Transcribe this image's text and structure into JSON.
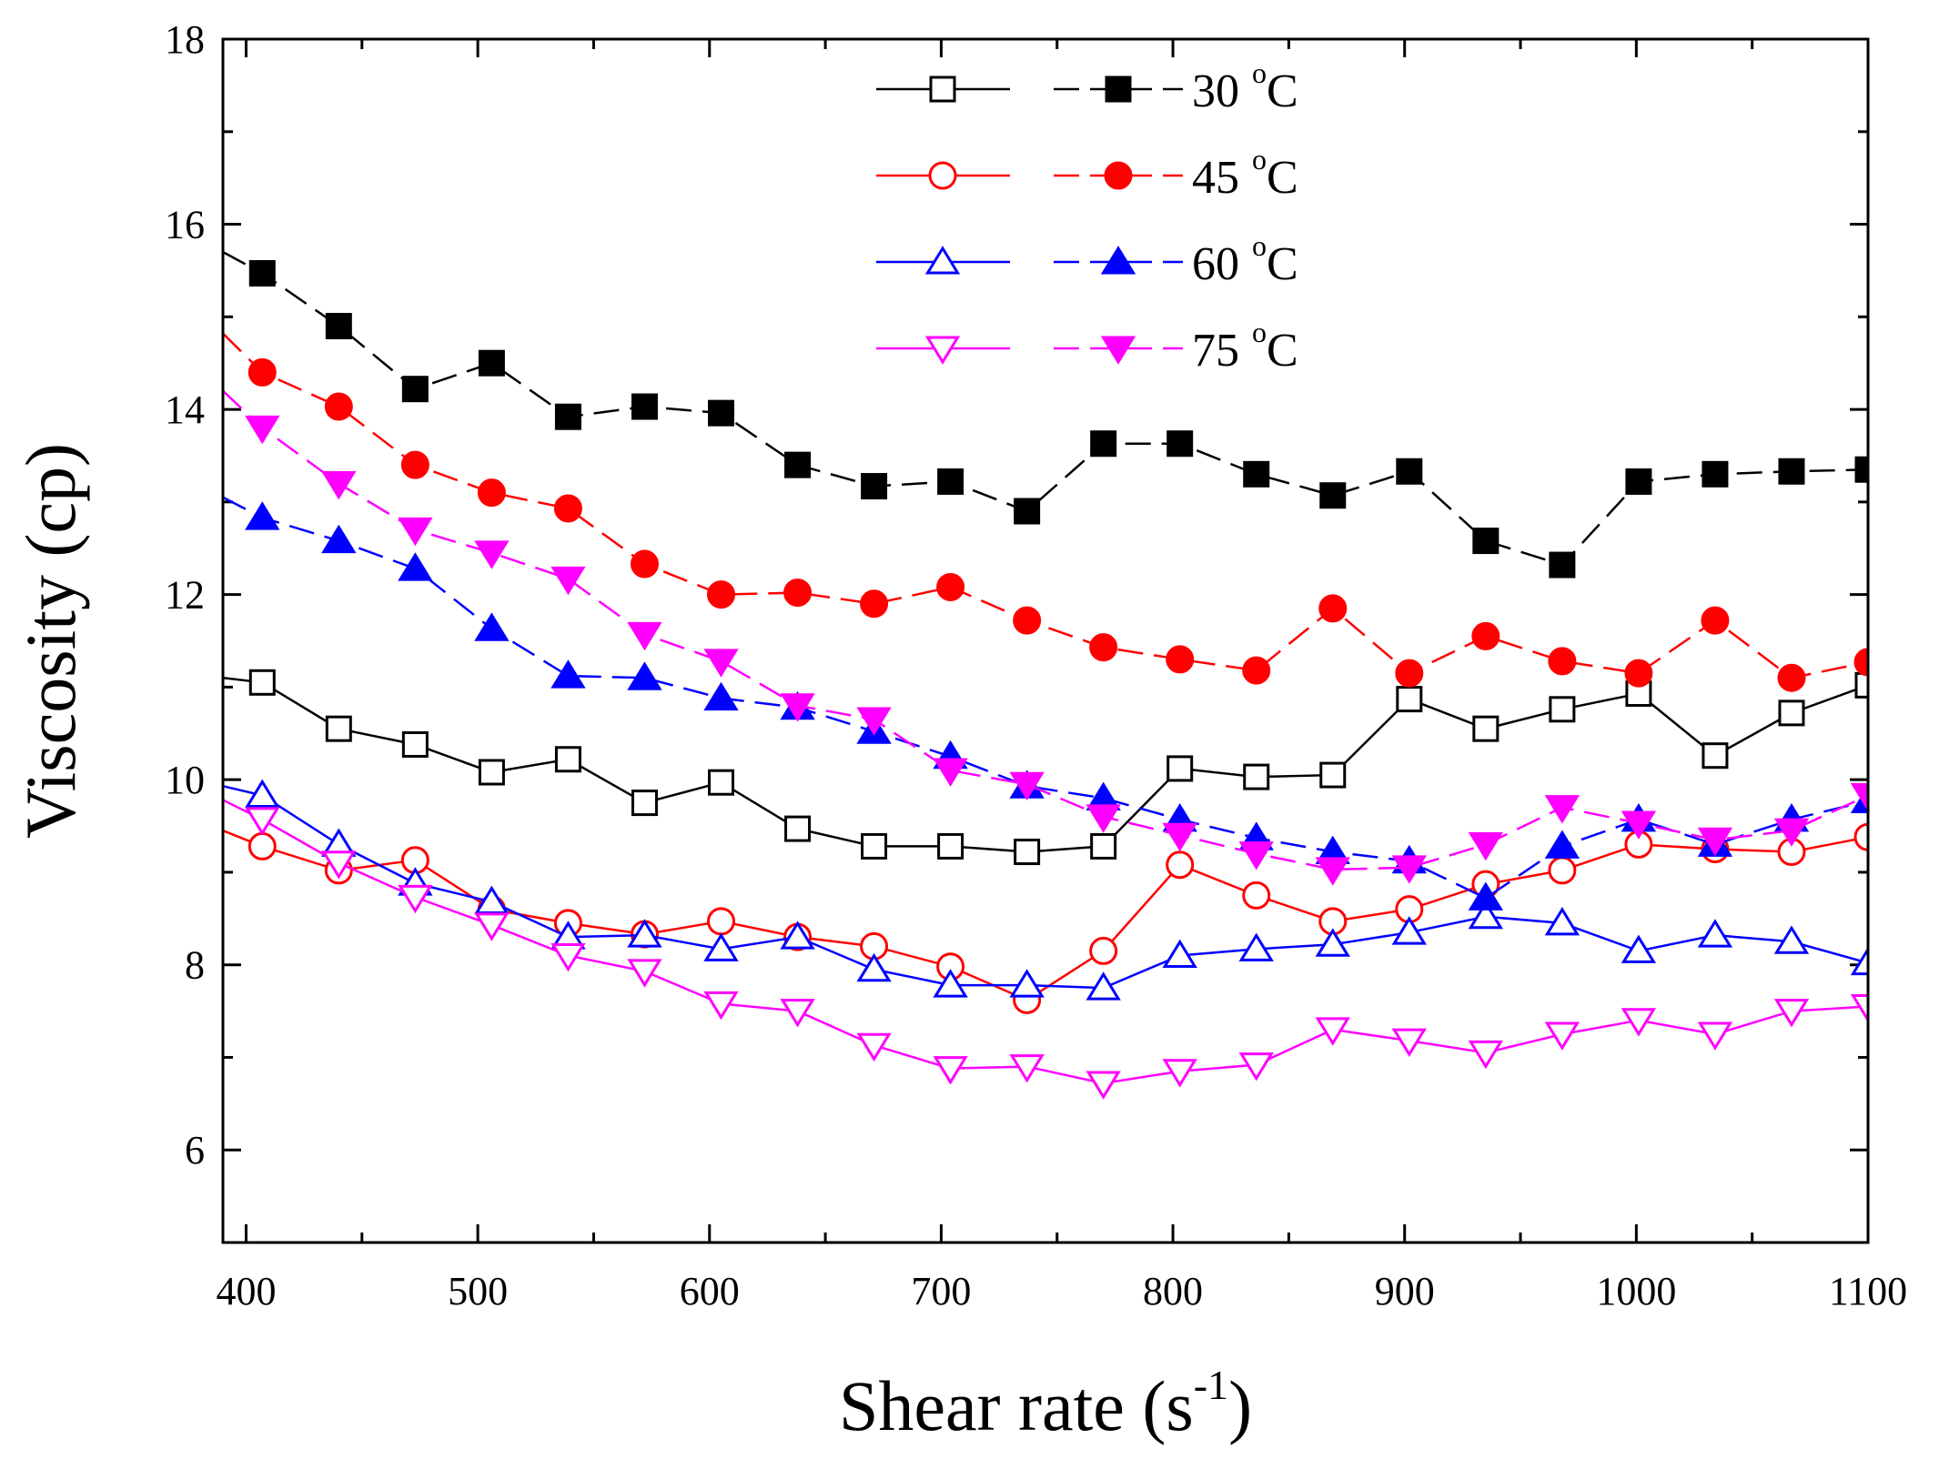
{
  "chart_data": {
    "type": "line",
    "title": "",
    "xlabel": "Shear rate (s",
    "xlabel_sup": "-1",
    "xlabel_close": ")",
    "ylabel": "Viscosity (cp)",
    "xlim": [
      390,
      1100
    ],
    "ylim": [
      5,
      18
    ],
    "xticks": [
      400,
      500,
      600,
      700,
      800,
      900,
      1000,
      1100
    ],
    "yticks": [
      6,
      8,
      10,
      12,
      14,
      16,
      18
    ],
    "legend_position": "top-center",
    "x": [
      390,
      407,
      440,
      473,
      506,
      539,
      572,
      605,
      638,
      671,
      704,
      737,
      770,
      803,
      836,
      869,
      902,
      935,
      968,
      1001,
      1034,
      1067,
      1100
    ],
    "series": [
      {
        "name": "30 °C (open)",
        "temp": "30",
        "color": "#000000",
        "marker": "square",
        "filled": false,
        "values": [
          11.1,
          11.05,
          10.55,
          10.38,
          10.08,
          10.22,
          9.75,
          9.97,
          9.47,
          9.28,
          9.28,
          9.22,
          9.28,
          10.12,
          10.03,
          10.05,
          10.87,
          10.55,
          10.76,
          10.93,
          10.26,
          10.72,
          11.02
        ]
      },
      {
        "name": "30 °C (filled)",
        "temp": "30",
        "color": "#000000",
        "marker": "square",
        "filled": true,
        "values": [
          15.7,
          15.47,
          14.9,
          14.22,
          14.5,
          13.92,
          14.03,
          13.96,
          13.4,
          13.17,
          13.22,
          12.9,
          13.63,
          13.63,
          13.3,
          13.07,
          13.33,
          12.58,
          12.32,
          13.22,
          13.3,
          13.33,
          13.35
        ]
      },
      {
        "name": "45 °C (open)",
        "temp": "45",
        "color": "#ff0000",
        "marker": "circle",
        "filled": false,
        "values": [
          9.45,
          9.28,
          9.02,
          9.13,
          8.6,
          8.45,
          8.33,
          8.47,
          8.3,
          8.2,
          7.98,
          7.62,
          8.15,
          9.08,
          8.75,
          8.47,
          8.6,
          8.87,
          9.02,
          9.3,
          9.25,
          9.22,
          9.38
        ]
      },
      {
        "name": "45 °C (filled)",
        "temp": "45",
        "color": "#ff0000",
        "marker": "circle",
        "filled": true,
        "values": [
          14.82,
          14.4,
          14.03,
          13.4,
          13.1,
          12.93,
          12.33,
          12.0,
          12.02,
          11.9,
          12.08,
          11.72,
          11.43,
          11.3,
          11.18,
          11.85,
          11.15,
          11.55,
          11.28,
          11.15,
          11.72,
          11.1,
          11.27
        ]
      },
      {
        "name": "60 °C (open)",
        "temp": "60",
        "color": "#0000ff",
        "marker": "triangle-up",
        "filled": false,
        "values": [
          9.93,
          9.83,
          9.3,
          8.88,
          8.68,
          8.3,
          8.32,
          8.17,
          8.3,
          7.95,
          7.78,
          7.78,
          7.75,
          8.1,
          8.17,
          8.22,
          8.35,
          8.52,
          8.45,
          8.15,
          8.32,
          8.25,
          8.02
        ]
      },
      {
        "name": "60 °C (filled)",
        "temp": "60",
        "color": "#0000ff",
        "marker": "triangle-up",
        "filled": true,
        "values": [
          13.05,
          12.83,
          12.58,
          12.28,
          11.63,
          11.12,
          11.1,
          10.88,
          10.78,
          10.52,
          10.25,
          9.93,
          9.8,
          9.57,
          9.37,
          9.22,
          9.12,
          8.72,
          9.28,
          9.57,
          9.3,
          9.57,
          9.77
        ]
      },
      {
        "name": "75 °C (open)",
        "temp": "75",
        "color": "#ff00ff",
        "marker": "triangle-down",
        "filled": false,
        "values": [
          9.78,
          9.57,
          9.1,
          8.73,
          8.43,
          8.1,
          7.93,
          7.58,
          7.5,
          7.13,
          6.88,
          6.9,
          6.72,
          6.85,
          6.92,
          7.3,
          7.18,
          7.05,
          7.25,
          7.4,
          7.25,
          7.5,
          7.55
        ]
      },
      {
        "name": "75 °C (filled)",
        "temp": "75",
        "color": "#ff00ff",
        "marker": "triangle-down",
        "filled": true,
        "values": [
          14.2,
          13.8,
          13.2,
          12.7,
          12.45,
          12.17,
          11.57,
          11.28,
          10.8,
          10.65,
          10.1,
          9.95,
          9.6,
          9.4,
          9.2,
          9.03,
          9.05,
          9.3,
          9.7,
          9.53,
          9.35,
          9.45,
          9.83
        ]
      }
    ],
    "legend": [
      {
        "temp": "30",
        "degree": "o",
        "unit": "C",
        "color": "#000000",
        "marker": "square"
      },
      {
        "temp": "45",
        "degree": "o",
        "unit": "C",
        "color": "#ff0000",
        "marker": "circle"
      },
      {
        "temp": "60",
        "degree": "o",
        "unit": "C",
        "color": "#0000ff",
        "marker": "triangle-up"
      },
      {
        "temp": "75",
        "degree": "o",
        "unit": "C",
        "color": "#ff00ff",
        "marker": "triangle-down"
      }
    ]
  }
}
